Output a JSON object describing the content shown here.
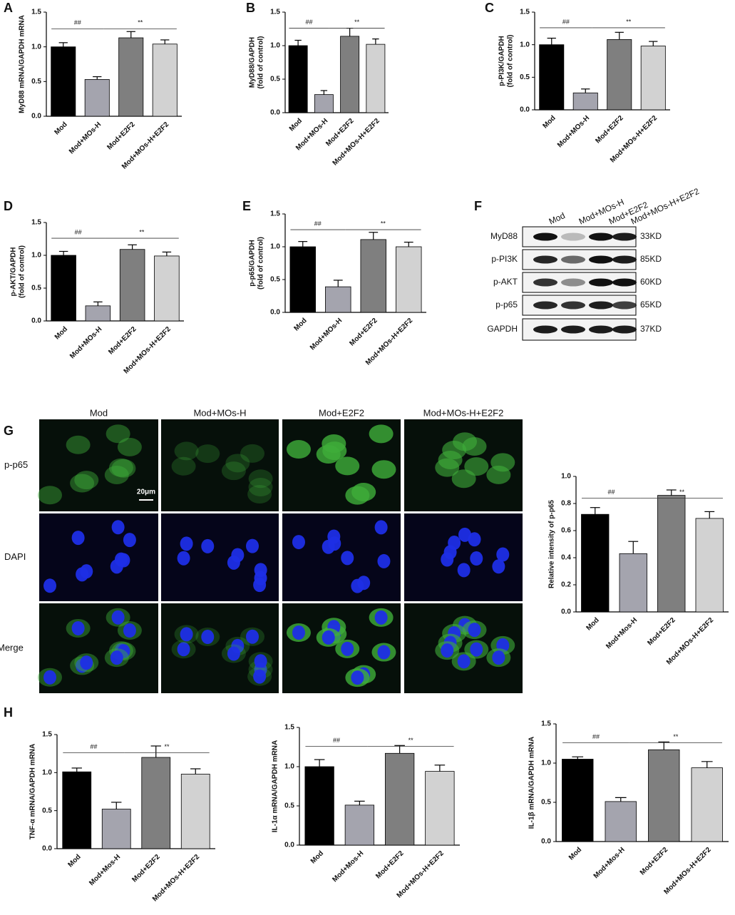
{
  "chart_data": [
    {
      "type": "bar",
      "panel": "A",
      "ylabel": [
        "MyD88 mRNA/GAPDH mRNA"
      ],
      "categories": [
        "Mod",
        "Mod+MOs-H",
        "Mod+E2F2",
        "Mod+MOs-H+E2F2"
      ],
      "values": [
        1.0,
        0.53,
        1.13,
        1.04
      ],
      "errors": [
        0.06,
        0.04,
        0.09,
        0.06
      ],
      "colors": [
        "#000000",
        "#a4a4ae",
        "#7f7f7f",
        "#d2d2d2"
      ],
      "ylim": [
        0,
        1.5
      ],
      "yticks": [
        {
          "value": 0,
          "label": "0.0"
        },
        0.5,
        {
          "value": 1,
          "label": "1.0"
        },
        1.5
      ],
      "annotations": [
        "##",
        "**"
      ]
    },
    {
      "type": "bar",
      "panel": "B",
      "ylabel": [
        "MyD88/GAPDH",
        "(fold of control)"
      ],
      "categories": [
        "Mod",
        "Mod+MOs-H",
        "Mod+E2F2",
        "Mod+MOs-H+E2F2"
      ],
      "values": [
        1.0,
        0.27,
        1.14,
        1.02
      ],
      "errors": [
        0.08,
        0.06,
        0.12,
        0.08
      ],
      "colors": [
        "#000000",
        "#a4a4ae",
        "#7f7f7f",
        "#d2d2d2"
      ],
      "ylim": [
        0,
        1.5
      ],
      "yticks": [
        {
          "value": 0,
          "label": "0.0"
        },
        0.5,
        {
          "value": 1,
          "label": "1.0"
        },
        1.5
      ],
      "annotations": [
        "##",
        "**"
      ]
    },
    {
      "type": "bar",
      "panel": "C",
      "ylabel": [
        "p-PI3K/GAPDH",
        "(fold of control)"
      ],
      "categories": [
        "Mod",
        "Mod+MOs-H",
        "Mod+E2F2",
        "Mod+MOs-H+E2F2"
      ],
      "values": [
        1.0,
        0.26,
        1.08,
        0.98
      ],
      "errors": [
        0.1,
        0.06,
        0.11,
        0.07
      ],
      "colors": [
        "#000000",
        "#a4a4ae",
        "#7f7f7f",
        "#d2d2d2"
      ],
      "ylim": [
        0,
        1.5
      ],
      "yticks": [
        {
          "value": 0,
          "label": "0.0"
        },
        0.5,
        {
          "value": 1,
          "label": "1.0"
        },
        1.5
      ],
      "annotations": [
        "##",
        "**"
      ]
    },
    {
      "type": "bar",
      "panel": "D",
      "ylabel": [
        "p-AKT/GAPDH",
        "(fold of control)"
      ],
      "categories": [
        "Mod",
        "Mod+MOs-H",
        "Mod+E2F2",
        "Mod+MOs-H+E2F2"
      ],
      "values": [
        1.0,
        0.23,
        1.09,
        0.99
      ],
      "errors": [
        0.06,
        0.06,
        0.07,
        0.06
      ],
      "colors": [
        "#000000",
        "#a4a4ae",
        "#7f7f7f",
        "#d2d2d2"
      ],
      "ylim": [
        0,
        1.5
      ],
      "yticks": [
        {
          "value": 0,
          "label": "0.0"
        },
        0.5,
        {
          "value": 1,
          "label": "1.0"
        },
        1.5
      ],
      "annotations": [
        "##",
        "**"
      ]
    },
    {
      "type": "bar",
      "panel": "E",
      "ylabel": [
        "p-p65/GAPDH",
        "(fold of control)"
      ],
      "categories": [
        "Mod",
        "Mod+MOs-H",
        "Mod+E2F2",
        "Mod+MOs-H+E2F2"
      ],
      "values": [
        1.0,
        0.39,
        1.11,
        1.0
      ],
      "errors": [
        0.08,
        0.1,
        0.11,
        0.07
      ],
      "colors": [
        "#000000",
        "#a4a4ae",
        "#7f7f7f",
        "#d2d2d2"
      ],
      "ylim": [
        0,
        1.5
      ],
      "yticks": [
        {
          "value": 0,
          "label": "0.0"
        },
        0.5,
        {
          "value": 1,
          "label": "1.0"
        },
        1.5
      ],
      "annotations": [
        "##",
        "**"
      ]
    },
    {
      "type": "bar",
      "ylabel": [
        "Relative intensity of p-p65"
      ],
      "categories": [
        "Mod",
        "Mod+Mos-H",
        "Mod+E2F2",
        "Mod+MOs-H+E2F2"
      ],
      "values": [
        0.72,
        0.43,
        0.86,
        0.69
      ],
      "errors": [
        0.05,
        0.09,
        0.04,
        0.05
      ],
      "colors": [
        "#000000",
        "#a4a4ae",
        "#7f7f7f",
        "#d2d2d2"
      ],
      "ylim": [
        0,
        1.0
      ],
      "yticks": [
        {
          "value": 0,
          "label": "0.0"
        },
        0.2,
        0.4,
        0.6,
        0.8,
        {
          "value": 1,
          "label": "1.0"
        }
      ],
      "annotations": [
        "##",
        "**"
      ]
    },
    {
      "type": "bar",
      "panel": "H",
      "ylabel": [
        "TNF-α mRNA/GAPDH mRNA"
      ],
      "categories": [
        "Mod",
        "Mod+Mos-H",
        "Mod+E2F2",
        "Mod+MOs-H+E2F2"
      ],
      "values": [
        1.01,
        0.52,
        1.2,
        0.98
      ],
      "errors": [
        0.05,
        0.09,
        0.15,
        0.07
      ],
      "colors": [
        "#000000",
        "#a4a4ae",
        "#7f7f7f",
        "#d2d2d2"
      ],
      "ylim": [
        0,
        1.5
      ],
      "yticks": [
        {
          "value": 0,
          "label": "0.0"
        },
        0.5,
        {
          "value": 1,
          "label": "1.0"
        },
        1.5
      ],
      "annotations": [
        "##",
        "**"
      ]
    },
    {
      "type": "bar",
      "ylabel": [
        "IL-1α mRNA/GAPDH mRNA"
      ],
      "categories": [
        "Mod",
        "Mod+Mos-H",
        "Mod+E2F2",
        "Mod+MOs-H+E2F2"
      ],
      "values": [
        1.0,
        0.51,
        1.17,
        0.94
      ],
      "errors": [
        0.09,
        0.05,
        0.1,
        0.08
      ],
      "colors": [
        "#000000",
        "#a4a4ae",
        "#7f7f7f",
        "#d2d2d2"
      ],
      "ylim": [
        0,
        1.5
      ],
      "yticks": [
        {
          "value": 0,
          "label": "0.0"
        },
        0.5,
        {
          "value": 1,
          "label": "1.0"
        },
        1.5
      ],
      "annotations": [
        "##",
        "**"
      ]
    },
    {
      "type": "bar",
      "ylabel": [
        "IL-1β mRNA/GAPDH mRNA"
      ],
      "categories": [
        "Mod",
        "Mod+Mos-H",
        "Mod+E2F2",
        "Mod+MOs-H+E2F2"
      ],
      "values": [
        1.05,
        0.51,
        1.17,
        0.94
      ],
      "errors": [
        0.03,
        0.05,
        0.1,
        0.08
      ],
      "colors": [
        "#000000",
        "#a4a4ae",
        "#7f7f7f",
        "#d2d2d2"
      ],
      "ylim": [
        0,
        1.5
      ],
      "yticks": [
        {
          "value": 0,
          "label": "0.0"
        },
        0.5,
        {
          "value": 1,
          "label": "1.0"
        },
        1.5
      ],
      "annotations": [
        "##",
        "**"
      ]
    }
  ],
  "blot": {
    "panel": "F",
    "lanes": [
      "Mod",
      "Mod+MOs-H",
      "Mod+E2F2",
      "Mod+MOs-H+E2F2"
    ],
    "rows": [
      {
        "protein": "MyD88",
        "size": "33KD"
      },
      {
        "protein": "p-PI3K",
        "size": "85KD"
      },
      {
        "protein": "p-AKT",
        "size": "60KD"
      },
      {
        "protein": "p-p65",
        "size": "65KD"
      },
      {
        "protein": "GAPDH",
        "size": "37KD"
      }
    ]
  },
  "microscopy": {
    "panel": "G",
    "columns": [
      "Mod",
      "Mod+MOs-H",
      "Mod+E2F2",
      "Mod+MOs-H+E2F2"
    ],
    "rows": [
      "p-p65",
      "DAPI",
      "Merge"
    ],
    "scale_bar": "20μm"
  }
}
